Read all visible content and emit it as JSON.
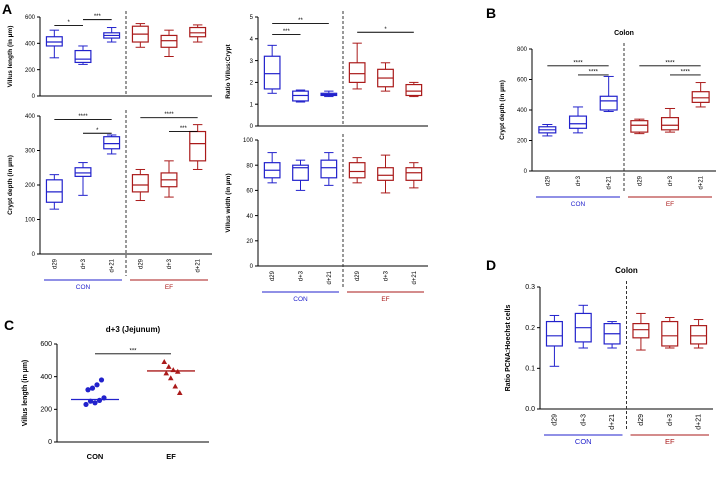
{
  "colors": {
    "con": "#2222cc",
    "ef": "#aa1a1a",
    "axis": "#000000",
    "sig": "#000000"
  },
  "panel_labels": [
    "A",
    "B",
    "C",
    "D"
  ],
  "chart_data": [
    {
      "id": "a1",
      "type": "boxplot",
      "panel": "A",
      "ylabel": "Villus length (in µm)",
      "ylim": [
        0,
        600
      ],
      "yticks": [
        0,
        200,
        400,
        600
      ],
      "categories": [
        "d29",
        "d+3",
        "d+21",
        "d29",
        "d+3",
        "d+21"
      ],
      "groups": [
        0,
        0,
        0,
        1,
        1,
        1
      ],
      "boxes": [
        [
          290,
          380,
          410,
          450,
          500
        ],
        [
          240,
          255,
          280,
          345,
          380
        ],
        [
          410,
          440,
          460,
          480,
          520
        ],
        [
          370,
          410,
          470,
          530,
          550
        ],
        [
          300,
          370,
          420,
          460,
          500
        ],
        [
          410,
          450,
          480,
          520,
          540
        ]
      ],
      "sig": [
        {
          "from": 0,
          "to": 1,
          "y": 535,
          "label": "*"
        },
        {
          "from": 1,
          "to": 2,
          "y": 580,
          "label": "***"
        }
      ]
    },
    {
      "id": "a2",
      "type": "boxplot",
      "panel": "A",
      "ylabel": "Ratio Villus:Crypt",
      "ylim": [
        0,
        5
      ],
      "yticks": [
        0,
        1,
        2,
        3,
        4,
        5
      ],
      "categories": [
        "d29",
        "d+3",
        "d+21",
        "d29",
        "d+3",
        "d+21"
      ],
      "groups": [
        0,
        0,
        0,
        1,
        1,
        1
      ],
      "boxes": [
        [
          1.5,
          1.7,
          2.4,
          3.2,
          3.7
        ],
        [
          1.1,
          1.15,
          1.4,
          1.6,
          1.65
        ],
        [
          1.35,
          1.4,
          1.45,
          1.5,
          1.6
        ],
        [
          1.7,
          2.0,
          2.4,
          2.9,
          3.8
        ],
        [
          1.6,
          1.8,
          2.2,
          2.6,
          2.9
        ],
        [
          1.35,
          1.4,
          1.6,
          1.9,
          2.0
        ]
      ],
      "sig": [
        {
          "from": 0,
          "to": 1,
          "y": 4.2,
          "label": "***"
        },
        {
          "from": 0,
          "to": 2,
          "y": 4.7,
          "label": "**"
        },
        {
          "from": 3,
          "to": 5,
          "y": 4.3,
          "label": "*"
        }
      ]
    },
    {
      "id": "a3",
      "type": "boxplot",
      "panel": "A",
      "ylabel": "Crypt depth (in µm)",
      "ylim": [
        0,
        400
      ],
      "yticks": [
        0,
        100,
        200,
        300,
        400
      ],
      "categories": [
        "d29",
        "d+3",
        "d+21",
        "d29",
        "d+3",
        "d+21"
      ],
      "groups": [
        0,
        0,
        0,
        1,
        1,
        1
      ],
      "boxes": [
        [
          130,
          150,
          180,
          215,
          230
        ],
        [
          170,
          225,
          235,
          250,
          265
        ],
        [
          290,
          305,
          320,
          340,
          345
        ],
        [
          155,
          180,
          200,
          230,
          245
        ],
        [
          165,
          195,
          215,
          235,
          270
        ],
        [
          245,
          270,
          320,
          355,
          375
        ]
      ],
      "sig": [
        {
          "from": 0,
          "to": 2,
          "y": 390,
          "label": "****"
        },
        {
          "from": 1,
          "to": 2,
          "y": 350,
          "label": "*"
        },
        {
          "from": 3,
          "to": 5,
          "y": 395,
          "label": "****"
        },
        {
          "from": 4,
          "to": 5,
          "y": 355,
          "label": "***"
        }
      ]
    },
    {
      "id": "a4",
      "type": "boxplot",
      "panel": "A",
      "ylabel": "Villus width (in µm)",
      "ylim": [
        0,
        100
      ],
      "yticks": [
        0,
        20,
        40,
        60,
        80,
        100
      ],
      "categories": [
        "d29",
        "d+3",
        "d+21",
        "d29",
        "d+3",
        "d+21"
      ],
      "groups": [
        0,
        0,
        0,
        1,
        1,
        1
      ],
      "boxes": [
        [
          66,
          70,
          76,
          82,
          90
        ],
        [
          60,
          68,
          78,
          80,
          84
        ],
        [
          64,
          70,
          78,
          84,
          90
        ],
        [
          66,
          70,
          75,
          82,
          86
        ],
        [
          58,
          68,
          72,
          78,
          88
        ],
        [
          62,
          68,
          74,
          78,
          82
        ]
      ],
      "sig": []
    },
    {
      "id": "b",
      "type": "boxplot",
      "panel": "B",
      "title": "Colon",
      "ylabel": "Crypt depth (in µm)",
      "ylim": [
        0,
        800
      ],
      "yticks": [
        0,
        200,
        400,
        600,
        800
      ],
      "categories": [
        "d29",
        "d+3",
        "d+21",
        "d29",
        "d+3",
        "d+21"
      ],
      "groups": [
        0,
        0,
        0,
        1,
        1,
        1
      ],
      "boxes": [
        [
          230,
          250,
          270,
          290,
          305
        ],
        [
          250,
          280,
          310,
          360,
          420
        ],
        [
          390,
          400,
          460,
          490,
          620
        ],
        [
          245,
          255,
          300,
          330,
          340
        ],
        [
          255,
          270,
          300,
          350,
          410
        ],
        [
          420,
          450,
          480,
          520,
          580
        ]
      ],
      "sig": [
        {
          "from": 0,
          "to": 2,
          "y": 690,
          "label": "****"
        },
        {
          "from": 1,
          "to": 2,
          "y": 630,
          "label": "****"
        },
        {
          "from": 3,
          "to": 5,
          "y": 690,
          "label": "****"
        },
        {
          "from": 4,
          "to": 5,
          "y": 630,
          "label": "****"
        }
      ]
    },
    {
      "id": "c",
      "type": "scatter",
      "panel": "C",
      "title": "d+3 (Jejunum)",
      "ylabel": "Villus length (in µm)",
      "ylim": [
        0,
        600
      ],
      "yticks": [
        0,
        200,
        400,
        600
      ],
      "categories": [
        "CON",
        "EF"
      ],
      "points": [
        [
          230,
          250,
          240,
          255,
          270,
          320,
          330,
          350,
          380
        ],
        [
          490,
          460,
          440,
          430,
          420,
          390,
          340,
          300
        ]
      ],
      "means": [
        260,
        435
      ],
      "sig": [
        {
          "from": 0,
          "to": 1,
          "y": 540,
          "label": "***"
        }
      ]
    },
    {
      "id": "d",
      "type": "boxplot",
      "panel": "D",
      "title": "Colon",
      "ylabel": "Ratio PCNA:Hoechst cells",
      "ylim": [
        0,
        0.3
      ],
      "yticks": [
        0,
        0.1,
        0.2,
        0.3
      ],
      "categories": [
        "d29",
        "d+3",
        "d+21",
        "d29",
        "d+3",
        "d+21"
      ],
      "groups": [
        0,
        0,
        0,
        1,
        1,
        1
      ],
      "boxes": [
        [
          0.105,
          0.155,
          0.18,
          0.215,
          0.23
        ],
        [
          0.15,
          0.165,
          0.2,
          0.235,
          0.255
        ],
        [
          0.15,
          0.16,
          0.185,
          0.21,
          0.215
        ],
        [
          0.145,
          0.175,
          0.195,
          0.21,
          0.235
        ],
        [
          0.15,
          0.155,
          0.18,
          0.215,
          0.225
        ],
        [
          0.15,
          0.16,
          0.18,
          0.205,
          0.22
        ]
      ],
      "sig": []
    }
  ],
  "group_labels": {
    "con": "CON",
    "ef": "EF"
  }
}
